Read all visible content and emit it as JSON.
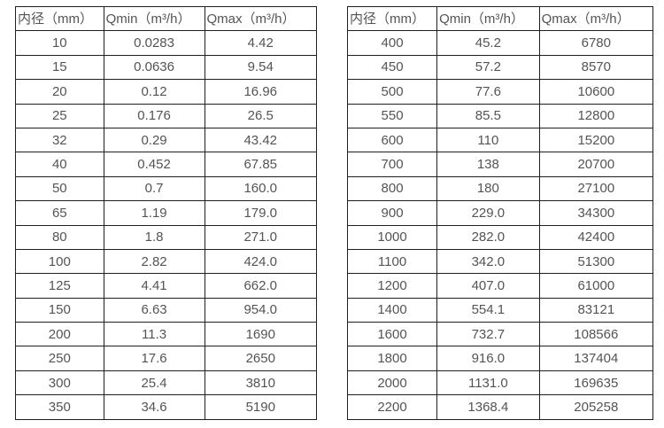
{
  "tables": [
    {
      "name": "flow-table-small-diameters",
      "headers": [
        "内径（mm）",
        "Qmin（m³/h）",
        "Qmax（m³/h）"
      ],
      "rows": [
        [
          "10",
          "0.0283",
          "4.42"
        ],
        [
          "15",
          "0.0636",
          "9.54"
        ],
        [
          "20",
          "0.12",
          "16.96"
        ],
        [
          "25",
          "0.176",
          "26.5"
        ],
        [
          "32",
          "0.29",
          "43.42"
        ],
        [
          "40",
          "0.452",
          "67.85"
        ],
        [
          "50",
          "0.7",
          "160.0"
        ],
        [
          "65",
          "1.19",
          "179.0"
        ],
        [
          "80",
          "1.8",
          "271.0"
        ],
        [
          "100",
          "2.82",
          "424.0"
        ],
        [
          "125",
          "4.41",
          "662.0"
        ],
        [
          "150",
          "6.63",
          "954.0"
        ],
        [
          "200",
          "11.3",
          "1690"
        ],
        [
          "250",
          "17.6",
          "2650"
        ],
        [
          "300",
          "25.4",
          "3810"
        ],
        [
          "350",
          "34.6",
          "5190"
        ]
      ]
    },
    {
      "name": "flow-table-large-diameters",
      "headers": [
        "内径（mm）",
        "Qmin（m³/h）",
        "Qmax（m³/h）"
      ],
      "rows": [
        [
          "400",
          "45.2",
          "6780"
        ],
        [
          "450",
          "57.2",
          "8570"
        ],
        [
          "500",
          "77.6",
          "10600"
        ],
        [
          "550",
          "85.5",
          "12800"
        ],
        [
          "600",
          "110",
          "15200"
        ],
        [
          "700",
          "138",
          "20700"
        ],
        [
          "800",
          "180",
          "27100"
        ],
        [
          "900",
          "229.0",
          "34300"
        ],
        [
          "1000",
          "282.0",
          "42400"
        ],
        [
          "1100",
          "342.0",
          "51300"
        ],
        [
          "1200",
          "407.0",
          "61000"
        ],
        [
          "1400",
          "554.1",
          "83121"
        ],
        [
          "1600",
          "732.7",
          "108566"
        ],
        [
          "1800",
          "916.0",
          "137404"
        ],
        [
          "2000",
          "1131.0",
          "169635"
        ],
        [
          "2200",
          "1368.4",
          "205258"
        ]
      ]
    }
  ],
  "colors": {
    "border": "#1f1f1f",
    "text": "#545454",
    "background": "#ffffff"
  }
}
